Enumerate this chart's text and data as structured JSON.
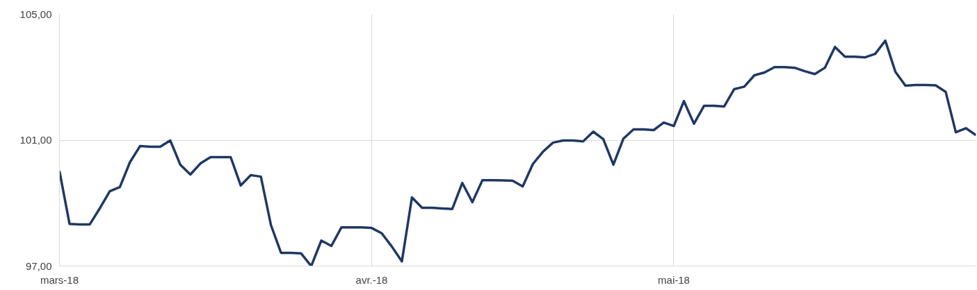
{
  "chart_data": {
    "type": "line",
    "x": [
      "2018-03-01",
      "2018-03-02",
      "2018-03-03",
      "2018-03-04",
      "2018-03-05",
      "2018-03-06",
      "2018-03-07",
      "2018-03-08",
      "2018-03-09",
      "2018-03-10",
      "2018-03-11",
      "2018-03-12",
      "2018-03-13",
      "2018-03-14",
      "2018-03-15",
      "2018-03-16",
      "2018-03-17",
      "2018-03-18",
      "2018-03-19",
      "2018-03-20",
      "2018-03-21",
      "2018-03-22",
      "2018-03-23",
      "2018-03-24",
      "2018-03-25",
      "2018-03-26",
      "2018-03-27",
      "2018-03-28",
      "2018-03-29",
      "2018-03-30",
      "2018-03-31",
      "2018-04-01",
      "2018-04-02",
      "2018-04-03",
      "2018-04-04",
      "2018-04-05",
      "2018-04-06",
      "2018-04-07",
      "2018-04-08",
      "2018-04-09",
      "2018-04-10",
      "2018-04-11",
      "2018-04-12",
      "2018-04-13",
      "2018-04-14",
      "2018-04-15",
      "2018-04-16",
      "2018-04-17",
      "2018-04-18",
      "2018-04-19",
      "2018-04-20",
      "2018-04-21",
      "2018-04-22",
      "2018-04-23",
      "2018-04-24",
      "2018-04-25",
      "2018-04-26",
      "2018-04-27",
      "2018-04-28",
      "2018-04-29",
      "2018-04-30",
      "2018-05-01",
      "2018-05-02",
      "2018-05-03",
      "2018-05-04",
      "2018-05-05",
      "2018-05-06",
      "2018-05-07",
      "2018-05-08",
      "2018-05-09",
      "2018-05-10",
      "2018-05-11",
      "2018-05-12",
      "2018-05-13",
      "2018-05-14",
      "2018-05-15",
      "2018-05-16",
      "2018-05-17",
      "2018-05-18",
      "2018-05-19",
      "2018-05-20",
      "2018-05-21",
      "2018-05-22",
      "2018-05-23",
      "2018-05-24",
      "2018-05-25",
      "2018-05-26",
      "2018-05-27",
      "2018-05-28",
      "2018-05-29",
      "2018-05-30",
      "2018-05-31"
    ],
    "series": [
      {
        "color": "#1f3864",
        "values": [
          100.02,
          98.34,
          98.32,
          98.32,
          98.83,
          99.38,
          99.51,
          100.3,
          100.81,
          100.79,
          100.79,
          100.99,
          100.22,
          99.91,
          100.26,
          100.46,
          100.46,
          100.46,
          99.56,
          99.89,
          99.84,
          98.3,
          97.42,
          97.42,
          97.4,
          97.0,
          97.81,
          97.64,
          98.23,
          98.23,
          98.23,
          98.21,
          98.04,
          97.62,
          97.15,
          99.18,
          98.85,
          98.85,
          98.83,
          98.81,
          99.64,
          99.03,
          99.73,
          99.73,
          99.72,
          99.71,
          99.53,
          100.24,
          100.63,
          100.92,
          100.99,
          100.99,
          100.96,
          101.27,
          101.03,
          100.22,
          101.05,
          101.34,
          101.34,
          101.32,
          101.56,
          101.45,
          102.24,
          101.52,
          102.09,
          102.09,
          102.07,
          102.62,
          102.7,
          103.06,
          103.15,
          103.32,
          103.32,
          103.3,
          103.19,
          103.1,
          103.3,
          103.96,
          103.65,
          103.65,
          103.63,
          103.74,
          104.16,
          103.17,
          102.73,
          102.75,
          102.75,
          102.74,
          102.53,
          101.25,
          101.38,
          101.16
        ]
      }
    ],
    "xlim": [
      "2018-03-01",
      "2018-05-31"
    ],
    "xticks": [
      {
        "value": "2018-03-01",
        "label": "mars-18"
      },
      {
        "value": "2018-04-01",
        "label": "avr.-18"
      },
      {
        "value": "2018-05-01",
        "label": "mai-18"
      }
    ],
    "ylim": [
      97,
      105
    ],
    "yticks": [
      {
        "value": 97,
        "label": "97,00"
      },
      {
        "value": 101,
        "label": "101,00"
      },
      {
        "value": 105,
        "label": "105,00"
      }
    ],
    "grid": true,
    "line_style": "solid"
  }
}
